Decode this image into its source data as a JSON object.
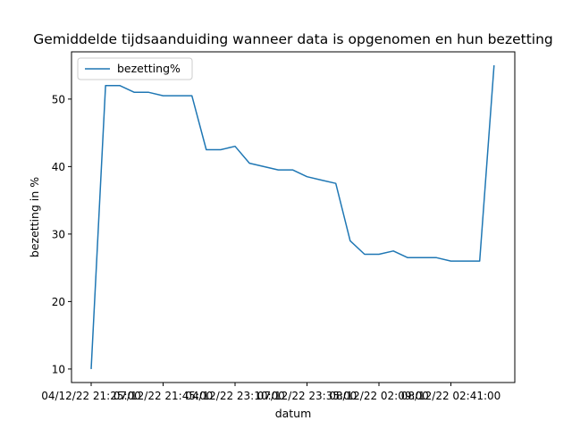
{
  "chart_data": {
    "type": "line",
    "title": "Gemiddelde tijdsaanduiding wanneer data is opgenomen en hun bezetting",
    "xlabel": "datum",
    "ylabel": "bezetting in %",
    "ylim": [
      8,
      57
    ],
    "yticks": [
      10,
      20,
      30,
      40,
      50
    ],
    "xtick_labels": [
      "04/12/22 21:25:00",
      "07/12/22 21:45:00",
      "04/12/22 23:10:00",
      "07/12/22 23:35:00",
      "08/12/22 02:09:00",
      "08/12/22 02:41:00"
    ],
    "grid": false,
    "legend": "top-left",
    "colors": {
      "series": "#1f77b4"
    },
    "series": [
      {
        "name": "bezetting%",
        "values": [
          10,
          52,
          52,
          51,
          51,
          50.5,
          50.5,
          50.5,
          42.5,
          42.5,
          43,
          40.5,
          40,
          39.5,
          39.5,
          38.5,
          38,
          37.5,
          29,
          27,
          27,
          27.5,
          26.5,
          26.5,
          26.5,
          26,
          26,
          26,
          55
        ]
      }
    ]
  }
}
